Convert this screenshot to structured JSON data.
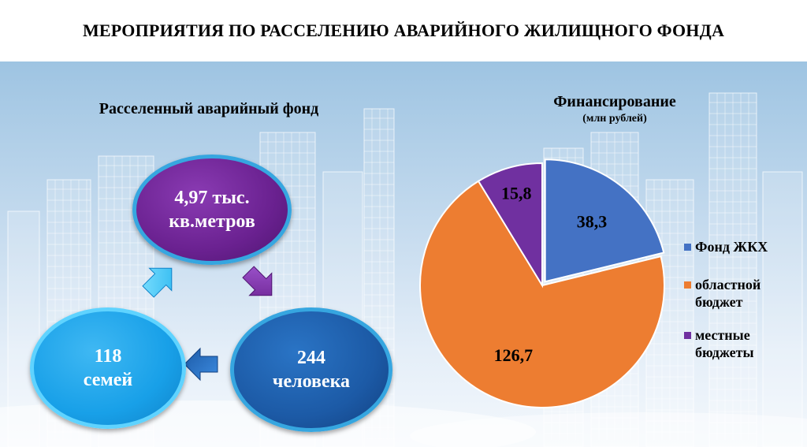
{
  "title": "МЕРОПРИЯТИЯ ПО РАССЕЛЕНИЮ АВАРИЙНОГО ЖИЛИЩНОГО ФОНДА",
  "left_panel": {
    "title": "Расселенный аварийный фонд",
    "area": {
      "line1": "4,97 тыс.",
      "line2": "кв.метров"
    },
    "people": {
      "line1": "244",
      "line2": "человека"
    },
    "families": {
      "line1": "118",
      "line2": "семей"
    }
  },
  "chart_data": {
    "type": "pie",
    "title": "Финансирование",
    "subtitle": "(млн рублей)",
    "slices": [
      {
        "name": "Фонд ЖКХ",
        "value": 38.3,
        "label": "38,3",
        "color": "#4472c4"
      },
      {
        "name": "областной бюджет",
        "value": 126.7,
        "label": "126,7",
        "color": "#ed7d31"
      },
      {
        "name": "местные бюджеты",
        "value": 15.8,
        "label": "15,8",
        "color": "#7030a0"
      }
    ],
    "legend_position": "right"
  }
}
